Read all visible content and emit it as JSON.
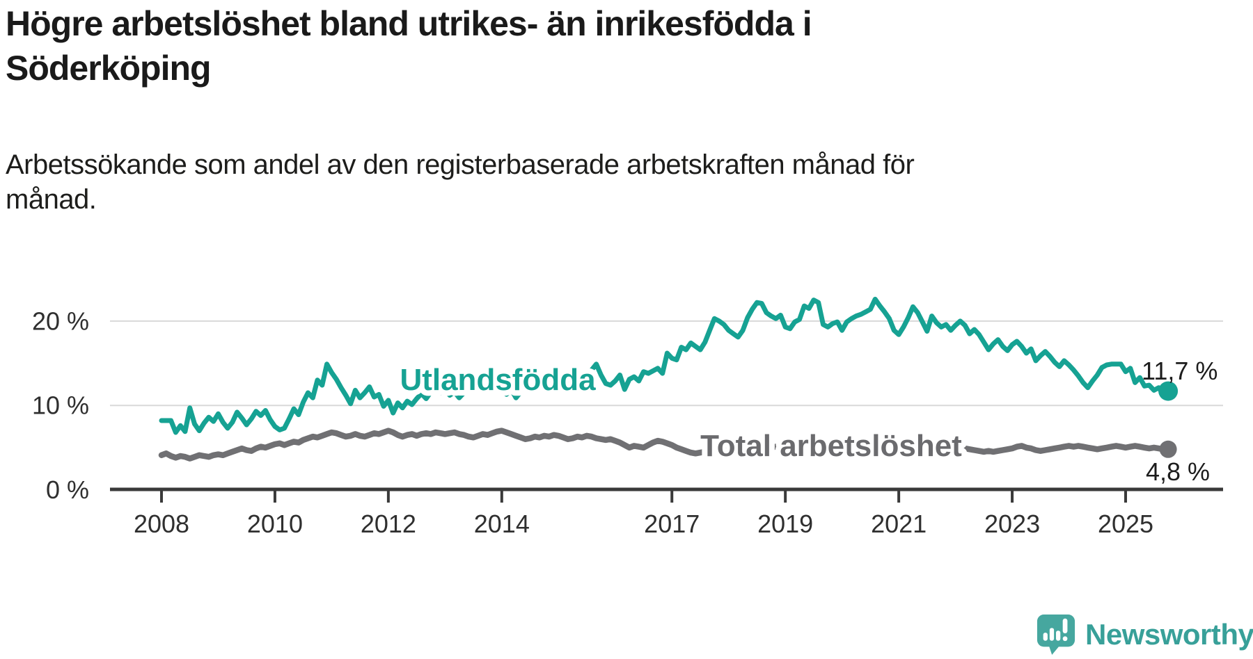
{
  "header": {
    "title": "Högre arbetslöshet bland utrikes- än inrikesfödda i\nSöderköping",
    "subtitle": "Arbetssökande som andel av den registerbaserade arbetskraften månad för\nmånad."
  },
  "footer": {
    "brand": "Newsworthy",
    "brand_color": "#38a099",
    "brand_mark_color": "#46a79f"
  },
  "colors": {
    "accent_teal": "#16a293",
    "line_gray": "#707073",
    "label_gray": "#6b6b6e",
    "axis_text": "#2f2f2f",
    "gridline": "#d8d8d8",
    "axis_line": "#3a3a3a",
    "value_label": "#1c1c1c"
  },
  "chart_data": {
    "type": "line",
    "title": "Högre arbetslöshet bland utrikes- än inrikesfödda i Söderköping",
    "xlabel": "",
    "ylabel": "Arbetssökande som andel av den registerbaserade arbetskraften",
    "x_unit": "year (monthly points)",
    "y_unit": "%",
    "x_range": [
      2007.9,
      2026.4
    ],
    "ylim": [
      0,
      24
    ],
    "grid": "horizontal",
    "legend_position": "inline-labels",
    "y_ticks": [
      {
        "value": 0,
        "label": "0 %"
      },
      {
        "value": 10,
        "label": "10 %"
      },
      {
        "value": 20,
        "label": "20 %"
      }
    ],
    "x_ticks": [
      {
        "value": 2008,
        "label": "2008"
      },
      {
        "value": 2010,
        "label": "2010"
      },
      {
        "value": 2012,
        "label": "2012"
      },
      {
        "value": 2014,
        "label": "2014"
      },
      {
        "value": 2017,
        "label": "2017"
      },
      {
        "value": 2019,
        "label": "2019"
      },
      {
        "value": 2021,
        "label": "2021"
      },
      {
        "value": 2023,
        "label": "2023"
      },
      {
        "value": 2025,
        "label": "2025"
      }
    ],
    "series": [
      {
        "name": "Total arbetslöshet",
        "color": "#707073",
        "label_color": "#6b6b6e",
        "x_start": 2008.0,
        "x_step": 0.0833333,
        "end_label": "4,8 %",
        "end_value": 4.8,
        "values": [
          4.1,
          4.3,
          4.0,
          3.8,
          4.0,
          3.9,
          3.7,
          3.9,
          4.1,
          4.0,
          3.9,
          4.1,
          4.2,
          4.1,
          4.3,
          4.5,
          4.7,
          4.9,
          4.7,
          4.6,
          4.9,
          5.1,
          5.0,
          5.2,
          5.4,
          5.5,
          5.3,
          5.5,
          5.7,
          5.6,
          5.9,
          6.1,
          6.3,
          6.2,
          6.4,
          6.6,
          6.8,
          6.7,
          6.5,
          6.3,
          6.4,
          6.6,
          6.4,
          6.3,
          6.5,
          6.7,
          6.6,
          6.8,
          7.0,
          6.8,
          6.5,
          6.3,
          6.5,
          6.6,
          6.4,
          6.6,
          6.7,
          6.6,
          6.8,
          6.7,
          6.6,
          6.7,
          6.8,
          6.6,
          6.5,
          6.3,
          6.2,
          6.4,
          6.6,
          6.5,
          6.7,
          6.9,
          7.0,
          6.8,
          6.6,
          6.4,
          6.2,
          6.0,
          6.1,
          6.3,
          6.2,
          6.4,
          6.3,
          6.5,
          6.4,
          6.2,
          6.0,
          6.1,
          6.3,
          6.2,
          6.4,
          6.3,
          6.1,
          6.0,
          5.9,
          6.0,
          5.8,
          5.6,
          5.3,
          5.0,
          5.2,
          5.1,
          5.0,
          5.3,
          5.6,
          5.8,
          5.7,
          5.5,
          5.3,
          5.0,
          4.8,
          4.6,
          4.4,
          4.3,
          4.4,
          4.5,
          4.6,
          4.7,
          4.8,
          4.9,
          4.8,
          4.9,
          4.7,
          4.8,
          4.9,
          5.0,
          4.9,
          4.8,
          4.9,
          5.0,
          5.1,
          5.2,
          5.1,
          5.2,
          5.3,
          5.4,
          5.3,
          5.4,
          5.5,
          5.4,
          5.3,
          5.4,
          5.5,
          5.6,
          5.5,
          5.6,
          5.8,
          5.9,
          6.0,
          5.9,
          5.8,
          5.9,
          5.8,
          5.7,
          5.6,
          5.5,
          5.4,
          5.5,
          5.4,
          5.3,
          5.2,
          5.1,
          5.0,
          5.1,
          5.0,
          4.9,
          4.8,
          4.9,
          4.8,
          4.9,
          4.9,
          4.8,
          4.7,
          4.6,
          4.5,
          4.6,
          4.5,
          4.6,
          4.7,
          4.8,
          4.9,
          5.1,
          5.2,
          5.0,
          4.9,
          4.7,
          4.6,
          4.7,
          4.8,
          4.9,
          5.0,
          5.1,
          5.2,
          5.1,
          5.2,
          5.1,
          5.0,
          4.9,
          4.8,
          4.9,
          5.0,
          5.1,
          5.2,
          5.1,
          5.0,
          5.1,
          5.2,
          5.1,
          5.0,
          4.9,
          5.0,
          4.9,
          4.8,
          4.8
        ]
      },
      {
        "name": "Utlandsfödda",
        "color": "#16a293",
        "label_color": "#16a293",
        "x_start": 2008.0,
        "x_step": 0.0833333,
        "end_label": "11,7 %",
        "end_value": 11.7,
        "values": [
          8.2,
          8.2,
          8.2,
          6.8,
          7.6,
          6.9,
          9.7,
          7.8,
          7.0,
          7.9,
          8.6,
          8.1,
          9.0,
          8.0,
          7.3,
          8.0,
          9.2,
          8.5,
          7.7,
          8.4,
          9.3,
          8.8,
          9.4,
          8.3,
          7.5,
          7.1,
          7.3,
          8.4,
          9.6,
          8.9,
          10.4,
          11.5,
          10.9,
          13.0,
          12.4,
          14.9,
          13.9,
          13.1,
          12.1,
          11.2,
          10.2,
          11.8,
          10.9,
          11.5,
          12.2,
          11.0,
          11.3,
          9.9,
          10.6,
          9.1,
          10.3,
          9.7,
          10.5,
          10.1,
          10.8,
          11.4,
          10.8,
          11.6,
          12.0,
          11.5,
          11.8,
          11.2,
          11.6,
          10.9,
          11.5,
          12.1,
          11.7,
          12.2,
          11.8,
          12.4,
          11.9,
          12.3,
          11.8,
          11.3,
          11.9,
          10.9,
          11.6,
          12.2,
          11.8,
          12.5,
          12.1,
          12.7,
          12.3,
          12.8,
          12.4,
          12.9,
          12.5,
          13.1,
          12.7,
          13.3,
          13.6,
          14.2,
          14.9,
          13.6,
          12.6,
          12.4,
          12.9,
          13.6,
          11.9,
          13.1,
          13.4,
          12.9,
          14.0,
          13.8,
          14.1,
          14.4,
          13.8,
          16.2,
          15.6,
          15.4,
          16.9,
          16.6,
          17.4,
          17.0,
          16.6,
          17.5,
          18.9,
          20.3,
          20.0,
          19.6,
          18.9,
          18.5,
          18.1,
          18.9,
          20.4,
          21.4,
          22.2,
          22.1,
          21.0,
          20.6,
          20.3,
          20.7,
          19.3,
          19.1,
          19.9,
          20.2,
          21.8,
          21.5,
          22.5,
          22.2,
          19.6,
          19.3,
          19.7,
          19.9,
          18.9,
          19.9,
          20.3,
          20.6,
          20.8,
          21.1,
          21.4,
          22.6,
          21.8,
          21.1,
          20.3,
          18.9,
          18.4,
          19.3,
          20.4,
          21.7,
          21.0,
          19.9,
          18.8,
          20.6,
          19.8,
          19.3,
          19.6,
          18.9,
          19.5,
          20.0,
          19.5,
          18.5,
          19.0,
          18.4,
          17.5,
          16.6,
          17.3,
          17.8,
          17.0,
          16.5,
          17.2,
          17.6,
          17.0,
          16.2,
          16.7,
          15.3,
          15.9,
          16.4,
          15.8,
          15.1,
          14.6,
          15.3,
          14.8,
          14.2,
          13.5,
          12.7,
          12.1,
          12.9,
          13.6,
          14.5,
          14.8,
          14.9,
          14.9,
          14.9,
          14.0,
          14.4,
          12.7,
          13.3,
          12.3,
          12.4,
          11.8,
          12.1,
          11.3,
          11.7
        ]
      }
    ]
  }
}
